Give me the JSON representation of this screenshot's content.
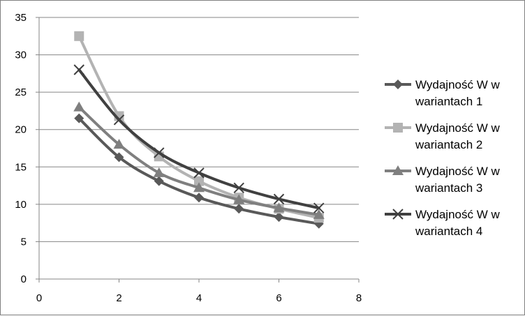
{
  "chart_data": {
    "type": "line",
    "smooth": true,
    "title": "",
    "xlabel": "",
    "ylabel": "",
    "xlim": [
      0,
      8
    ],
    "ylim": [
      0,
      35
    ],
    "xticks": [
      0,
      2,
      4,
      6,
      8
    ],
    "yticks": [
      0,
      5,
      10,
      15,
      20,
      25,
      30,
      35
    ],
    "grid": "horizontal",
    "legend": "right",
    "series": [
      {
        "name": "Wydajność W w wariantach 1",
        "name_lines": [
          "Wydajność W w",
          "wariantach 1"
        ],
        "color": "#595959",
        "marker": "diamond",
        "x": [
          1,
          2,
          3,
          4,
          5,
          6,
          7
        ],
        "values": [
          21.5,
          16.3,
          13.1,
          10.9,
          9.4,
          8.3,
          7.4
        ]
      },
      {
        "name": "Wydajność W w wariantach 2",
        "name_lines": [
          "Wydajność W w",
          "wariantach 2"
        ],
        "color": "#b3b3b3",
        "marker": "square",
        "x": [
          1,
          2,
          3,
          4,
          5,
          6,
          7
        ],
        "values": [
          32.5,
          21.8,
          16.4,
          13.1,
          10.9,
          9.4,
          8.2
        ]
      },
      {
        "name": "Wydajność W w wariantach 3",
        "name_lines": [
          "Wydajność W w",
          "wariantach 3"
        ],
        "color": "#7f7f7f",
        "marker": "triangle",
        "x": [
          1,
          2,
          3,
          4,
          5,
          6,
          7
        ],
        "values": [
          23.0,
          18.0,
          14.2,
          12.2,
          10.6,
          9.5,
          8.6
        ]
      },
      {
        "name": "Wydajność W w wariantach 4",
        "name_lines": [
          "Wydajność W w",
          "wariantach 4"
        ],
        "color": "#404040",
        "marker": "x",
        "x": [
          1,
          2,
          3,
          4,
          5,
          6,
          7
        ],
        "values": [
          28.0,
          21.3,
          16.9,
          14.2,
          12.2,
          10.7,
          9.5
        ]
      }
    ]
  }
}
